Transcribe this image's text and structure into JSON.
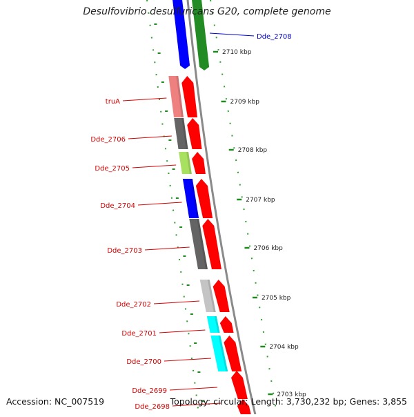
{
  "title": "Desulfovibrio desulfuricans G20, complete genome",
  "accession_text": "Accession: NC_007519",
  "topology_text": "Topology: circular; Length: 3,730,232 bp; Genes: 3,855",
  "kbp_ticks": [
    "2710 kbp",
    "2709 kbp",
    "2708 kbp",
    "2707 kbp",
    "2706 kbp",
    "2705 kbp",
    "2704 kbp",
    "2703 kbp"
  ],
  "colors": {
    "reverse_strand_labels": "#d40000",
    "forward_strand_labels": "#0000cc",
    "gene_arrow": "#ff0000",
    "backbone": "#8a8a8a",
    "tick_marks": "#1f8a1f",
    "dotted_guides": "#2e9e2e"
  },
  "genes": [
    {
      "label": "Dde_2708",
      "strand": "forward",
      "cog_color": "#0000ff",
      "arrow_color": "#238b23"
    },
    {
      "label": "truA",
      "strand": "reverse",
      "cog_color": "#ee8080",
      "arrow_color": "#ff0000"
    },
    {
      "label": "Dde_2706",
      "strand": "reverse",
      "cog_color": "#646464",
      "arrow_color": "#ff0000"
    },
    {
      "label": "Dde_2705",
      "strand": "reverse",
      "cog_color": "#a8e060",
      "arrow_color": "#ff0000"
    },
    {
      "label": "Dde_2704",
      "strand": "reverse",
      "cog_color": "#0000ff",
      "arrow_color": "#ff0000"
    },
    {
      "label": "Dde_2703",
      "strand": "reverse",
      "cog_color": "#646464",
      "arrow_color": "#ff0000"
    },
    {
      "label": "Dde_2702",
      "strand": "reverse",
      "cog_color": "#c4c4c4",
      "arrow_color": "#ff0000"
    },
    {
      "label": "Dde_2701",
      "strand": "reverse",
      "cog_color": "#00ffff",
      "arrow_color": "#ff0000"
    },
    {
      "label": "Dde_2700",
      "strand": "reverse",
      "cog_color": "#00ffff",
      "arrow_color": "#ff0000"
    },
    {
      "label": "Dde_2699",
      "strand": "reverse",
      "cog_color": "",
      "arrow_color": "#ff0000"
    },
    {
      "label": "Dde_2698",
      "strand": "reverse",
      "cog_color": "",
      "arrow_color": "#ff0000"
    }
  ]
}
